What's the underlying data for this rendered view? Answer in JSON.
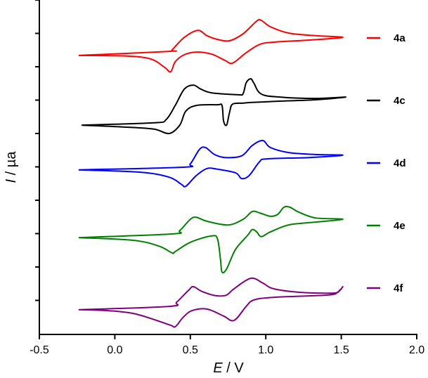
{
  "chart_data": {
    "type": "line",
    "title": "",
    "xlabel": {
      "var": "E",
      "unit": " / V"
    },
    "ylabel": {
      "var": "I",
      "unit": " / µa"
    },
    "xlim": [
      -0.5,
      2.0
    ],
    "ylim": [
      0,
      10
    ],
    "xticks": [
      "-0.5",
      "0.0",
      "0.5",
      "1.0",
      "1.5",
      "2.0"
    ],
    "xtick_values": [
      -0.5,
      0.0,
      0.5,
      1.0,
      1.5,
      2.0
    ],
    "ytick_values": [
      1,
      2,
      3,
      4,
      5,
      6,
      7,
      8,
      9,
      10
    ],
    "grid": false,
    "legend_position": "right",
    "series": [
      {
        "name": "4a",
        "color": "#ff0000",
        "points": [
          [
            -0.24,
            8.34
          ],
          [
            0.36,
            8.46
          ],
          [
            0.38,
            8.51
          ],
          [
            0.46,
            8.88
          ],
          [
            0.55,
            9.09
          ],
          [
            0.61,
            8.93
          ],
          [
            0.68,
            8.82
          ],
          [
            0.76,
            8.78
          ],
          [
            0.85,
            8.99
          ],
          [
            0.94,
            9.37
          ],
          [
            0.97,
            9.39
          ],
          [
            1.03,
            9.2
          ],
          [
            1.15,
            9.01
          ],
          [
            1.33,
            8.93
          ],
          [
            1.51,
            8.88
          ],
          [
            1.29,
            8.8
          ],
          [
            1.06,
            8.74
          ],
          [
            0.96,
            8.67
          ],
          [
            0.87,
            8.42
          ],
          [
            0.78,
            8.11
          ],
          [
            0.73,
            8.19
          ],
          [
            0.64,
            8.38
          ],
          [
            0.54,
            8.44
          ],
          [
            0.46,
            8.36
          ],
          [
            0.4,
            8.15
          ],
          [
            0.37,
            7.85
          ],
          [
            0.33,
            7.98
          ],
          [
            0.24,
            8.23
          ],
          [
            0.08,
            8.32
          ],
          [
            -0.24,
            8.34
          ]
        ]
      },
      {
        "name": "4c",
        "color": "#000000",
        "points": [
          [
            -0.22,
            6.25
          ],
          [
            0.26,
            6.32
          ],
          [
            0.34,
            6.42
          ],
          [
            0.4,
            6.84
          ],
          [
            0.46,
            7.33
          ],
          [
            0.52,
            7.45
          ],
          [
            0.57,
            7.33
          ],
          [
            0.64,
            7.22
          ],
          [
            0.82,
            7.16
          ],
          [
            0.85,
            7.2
          ],
          [
            0.87,
            7.52
          ],
          [
            0.9,
            7.64
          ],
          [
            0.92,
            7.52
          ],
          [
            0.97,
            7.18
          ],
          [
            1.1,
            7.09
          ],
          [
            1.33,
            7.05
          ],
          [
            1.53,
            7.09
          ],
          [
            1.33,
            7.01
          ],
          [
            1.1,
            6.97
          ],
          [
            0.91,
            6.93
          ],
          [
            0.85,
            6.91
          ],
          [
            0.78,
            6.88
          ],
          [
            0.76,
            6.63
          ],
          [
            0.74,
            6.25
          ],
          [
            0.72,
            6.38
          ],
          [
            0.71,
            6.84
          ],
          [
            0.68,
            6.86
          ],
          [
            0.54,
            6.84
          ],
          [
            0.47,
            6.67
          ],
          [
            0.43,
            6.25
          ],
          [
            0.36,
            6.0
          ],
          [
            0.26,
            6.13
          ],
          [
            0.08,
            6.19
          ],
          [
            -0.22,
            6.25
          ]
        ]
      },
      {
        "name": "4d",
        "color": "#0000ff",
        "points": [
          [
            -0.24,
            4.91
          ],
          [
            0.45,
            4.99
          ],
          [
            0.5,
            5.09
          ],
          [
            0.56,
            5.52
          ],
          [
            0.6,
            5.58
          ],
          [
            0.66,
            5.37
          ],
          [
            0.73,
            5.28
          ],
          [
            0.84,
            5.33
          ],
          [
            0.91,
            5.64
          ],
          [
            0.98,
            5.79
          ],
          [
            1.03,
            5.58
          ],
          [
            1.15,
            5.43
          ],
          [
            1.33,
            5.37
          ],
          [
            1.51,
            5.35
          ],
          [
            1.29,
            5.28
          ],
          [
            1.01,
            5.24
          ],
          [
            0.96,
            5.16
          ],
          [
            0.89,
            4.74
          ],
          [
            0.84,
            4.65
          ],
          [
            0.8,
            4.82
          ],
          [
            0.68,
            4.93
          ],
          [
            0.61,
            4.95
          ],
          [
            0.54,
            4.74
          ],
          [
            0.47,
            4.42
          ],
          [
            0.44,
            4.48
          ],
          [
            0.36,
            4.69
          ],
          [
            0.17,
            4.84
          ],
          [
            -0.24,
            4.91
          ]
        ]
      },
      {
        "name": "4e",
        "color": "#008000",
        "points": [
          [
            -0.24,
            2.88
          ],
          [
            0.38,
            2.99
          ],
          [
            0.43,
            3.09
          ],
          [
            0.5,
            3.43
          ],
          [
            0.54,
            3.49
          ],
          [
            0.61,
            3.37
          ],
          [
            0.75,
            3.26
          ],
          [
            0.85,
            3.43
          ],
          [
            0.91,
            3.66
          ],
          [
            0.96,
            3.62
          ],
          [
            1.03,
            3.52
          ],
          [
            1.08,
            3.58
          ],
          [
            1.12,
            3.79
          ],
          [
            1.16,
            3.79
          ],
          [
            1.22,
            3.64
          ],
          [
            1.33,
            3.47
          ],
          [
            1.51,
            3.43
          ],
          [
            1.29,
            3.33
          ],
          [
            1.15,
            3.26
          ],
          [
            1.03,
            3.05
          ],
          [
            0.97,
            2.91
          ],
          [
            0.94,
            3.05
          ],
          [
            0.91,
            3.12
          ],
          [
            0.88,
            2.95
          ],
          [
            0.8,
            2.53
          ],
          [
            0.74,
            1.94
          ],
          [
            0.71,
            1.85
          ],
          [
            0.7,
            2.21
          ],
          [
            0.68,
            2.84
          ],
          [
            0.64,
            2.93
          ],
          [
            0.5,
            2.74
          ],
          [
            0.4,
            2.46
          ],
          [
            0.38,
            2.42
          ],
          [
            0.29,
            2.63
          ],
          [
            0.12,
            2.8
          ],
          [
            -0.24,
            2.88
          ]
        ]
      },
      {
        "name": "4f",
        "color": "#800080",
        "points": [
          [
            -0.24,
            0.72
          ],
          [
            0.36,
            0.82
          ],
          [
            0.41,
            0.95
          ],
          [
            0.49,
            1.31
          ],
          [
            0.52,
            1.41
          ],
          [
            0.58,
            1.26
          ],
          [
            0.67,
            1.14
          ],
          [
            0.74,
            1.16
          ],
          [
            0.79,
            1.35
          ],
          [
            0.9,
            1.66
          ],
          [
            0.98,
            1.52
          ],
          [
            1.05,
            1.35
          ],
          [
            1.23,
            1.24
          ],
          [
            1.45,
            1.22
          ],
          [
            1.49,
            1.31
          ],
          [
            1.51,
            1.41
          ],
          [
            1.48,
            1.26
          ],
          [
            1.41,
            1.16
          ],
          [
            1.05,
            1.09
          ],
          [
            0.92,
            1.01
          ],
          [
            0.87,
            0.82
          ],
          [
            0.79,
            0.4
          ],
          [
            0.72,
            0.53
          ],
          [
            0.61,
            0.74
          ],
          [
            0.51,
            0.69
          ],
          [
            0.45,
            0.48
          ],
          [
            0.4,
            0.21
          ],
          [
            0.36,
            0.27
          ],
          [
            0.14,
            0.59
          ],
          [
            -0.04,
            0.69
          ],
          [
            -0.24,
            0.72
          ]
        ]
      }
    ]
  }
}
